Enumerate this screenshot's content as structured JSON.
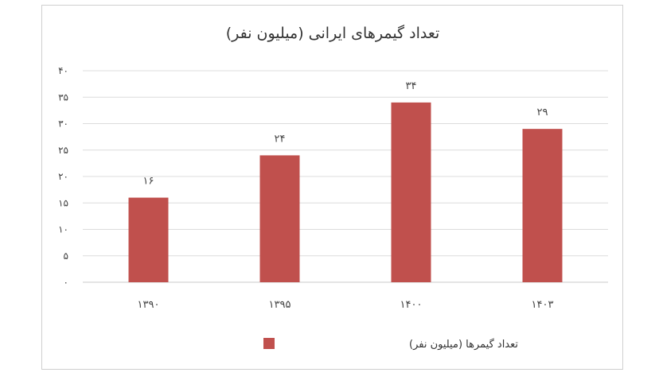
{
  "chart_data": {
    "type": "bar",
    "title": "تعداد گیمرهای ایرانی (میلیون نفر)",
    "categories": [
      "۱۳۹۰",
      "۱۳۹۵",
      "۱۴۰۰",
      "۱۴۰۳"
    ],
    "series": [
      {
        "name": "تعداد گیمرها (میلیون نفر)",
        "values": [
          16,
          24,
          34,
          29
        ],
        "value_labels": [
          "۱۶",
          "۲۴",
          "۳۴",
          "۲۹"
        ],
        "color": "#c0504d"
      }
    ],
    "ylim": [
      0,
      40
    ],
    "yticks": [
      0,
      5,
      10,
      15,
      20,
      25,
      30,
      35,
      40
    ],
    "ytick_labels": [
      "۰",
      "۵",
      "۱۰",
      "۱۵",
      "۲۰",
      "۲۵",
      "۳۰",
      "۳۵",
      "۴۰"
    ],
    "grid": true,
    "legend_position": "bottom"
  }
}
